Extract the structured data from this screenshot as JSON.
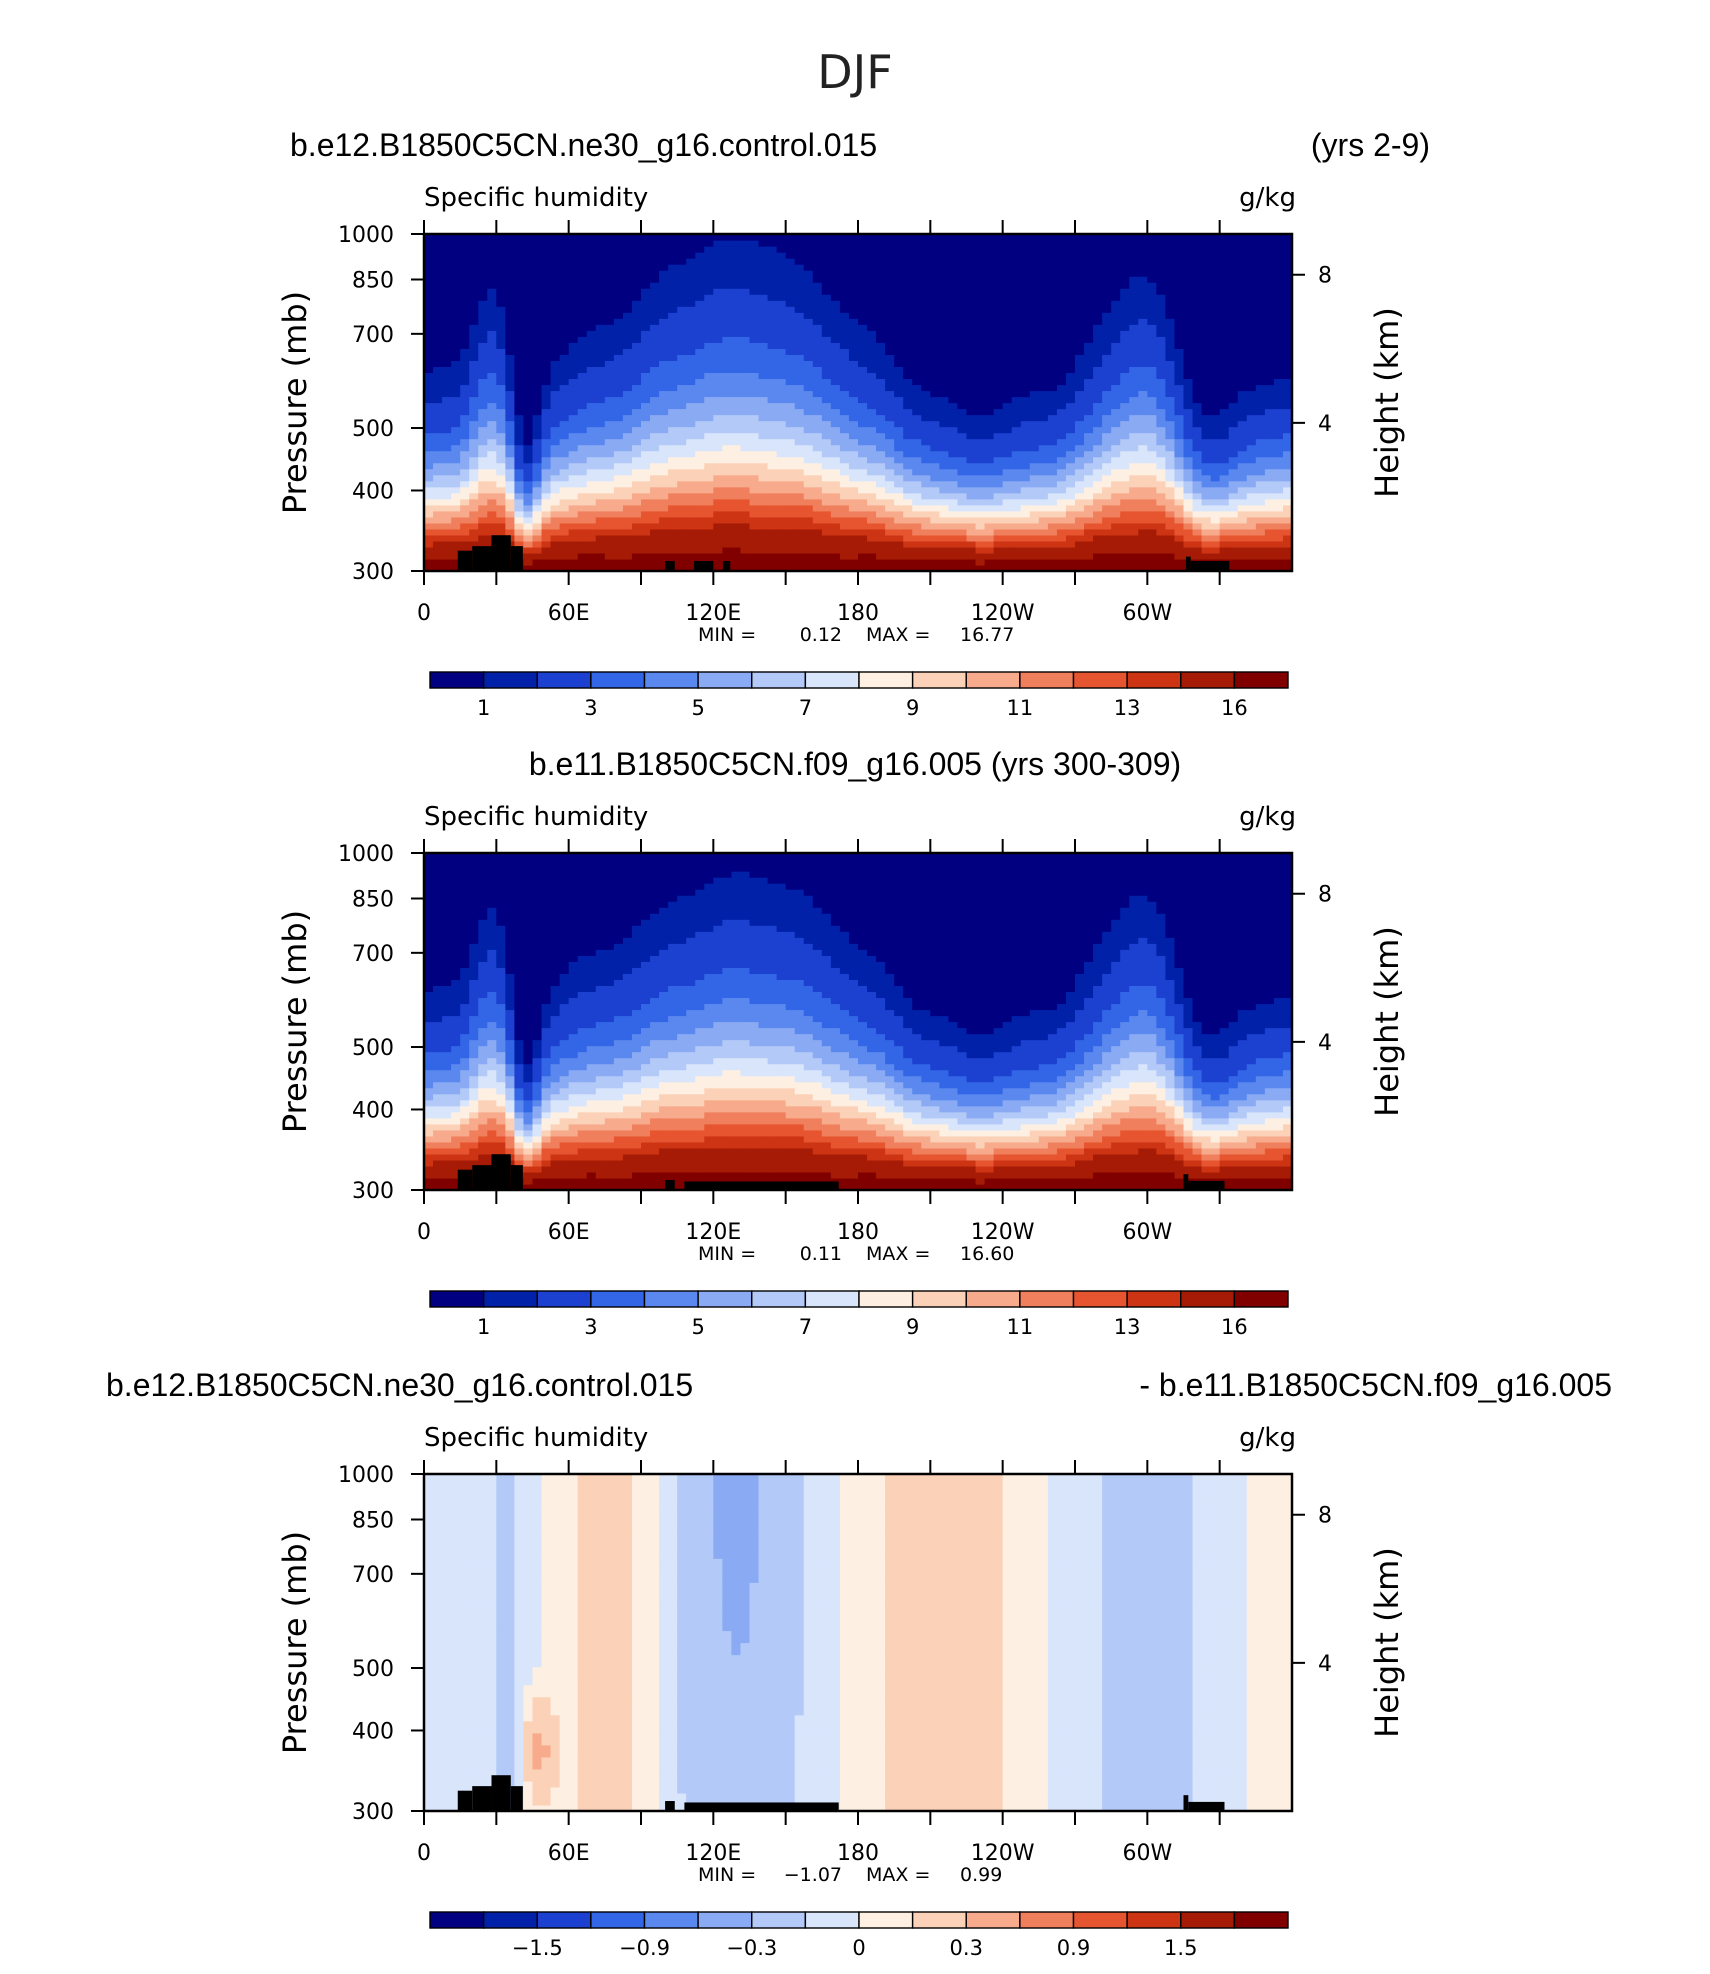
{
  "figure": {
    "title": "DJF"
  },
  "colors": {
    "seq": [
      "#000080",
      "#0021a8",
      "#1c40cf",
      "#3366e6",
      "#5b88ee",
      "#8aabf3",
      "#b3c9f7",
      "#d8e5fb",
      "#fdf0e3",
      "#fbd1b7",
      "#f7ab8c",
      "#f0805d",
      "#e6552f",
      "#cc3414",
      "#a61b06",
      "#800000"
    ],
    "land": "#000000"
  },
  "chart_data": [
    {
      "type": "heatmap",
      "panel": "model",
      "left_title": "b.e12.B1850C5CN.ne30_g16.control.015",
      "right_title": "(yrs 2-9)",
      "variable": "Specific humidity",
      "units": "g/kg",
      "ylabel": "Pressure (mb)",
      "ylabel_right": "Height (km)",
      "x_ticks": [
        "0",
        "60E",
        "120E",
        "180",
        "120W",
        "60W"
      ],
      "y_ticks": [
        "300",
        "400",
        "500",
        "700",
        "850",
        "1000"
      ],
      "y_right_ticks": [
        "8",
        "4"
      ],
      "ylim": [
        1000,
        300
      ],
      "xlim": [
        0,
        360
      ],
      "min_label": "MIN =",
      "min": "0.12",
      "max_label": "MAX =",
      "max": "16.77",
      "colorbar_labels": [
        "1",
        "3",
        "5",
        "7",
        "9",
        "11",
        "13",
        "16"
      ]
    },
    {
      "type": "heatmap",
      "panel": "obs",
      "center_title": "b.e11.B1850C5CN.f09_g16.005 (yrs 300-309)",
      "variable": "Specific humidity",
      "units": "g/kg",
      "ylabel": "Pressure (mb)",
      "ylabel_right": "Height (km)",
      "x_ticks": [
        "0",
        "60E",
        "120E",
        "180",
        "120W",
        "60W"
      ],
      "y_ticks": [
        "300",
        "400",
        "500",
        "700",
        "850",
        "1000"
      ],
      "y_right_ticks": [
        "8",
        "4"
      ],
      "ylim": [
        1000,
        300
      ],
      "xlim": [
        0,
        360
      ],
      "min_label": "MIN =",
      "min": "0.11",
      "max_label": "MAX =",
      "max": "16.60",
      "colorbar_labels": [
        "1",
        "3",
        "5",
        "7",
        "9",
        "11",
        "13",
        "16"
      ]
    },
    {
      "type": "heatmap",
      "panel": "difference",
      "left_title": "b.e12.B1850C5CN.ne30_g16.control.015",
      "right_title": "- b.e11.B1850C5CN.f09_g16.005",
      "variable": "Specific humidity",
      "units": "g/kg",
      "ylabel": "Pressure (mb)",
      "ylabel_right": "Height (km)",
      "x_ticks": [
        "0",
        "60E",
        "120E",
        "180",
        "120W",
        "60W"
      ],
      "y_ticks": [
        "300",
        "400",
        "500",
        "700",
        "850",
        "1000"
      ],
      "y_right_ticks": [
        "8",
        "4"
      ],
      "ylim": [
        1000,
        300
      ],
      "xlim": [
        0,
        360
      ],
      "min_label": "MIN =",
      "min": "−1.07",
      "max_label": "MAX =",
      "max": "0.99",
      "colorbar_labels": [
        "−1.5",
        "−0.9",
        "−0.3",
        "0",
        "0.3",
        "0.9",
        "1.5"
      ]
    }
  ]
}
